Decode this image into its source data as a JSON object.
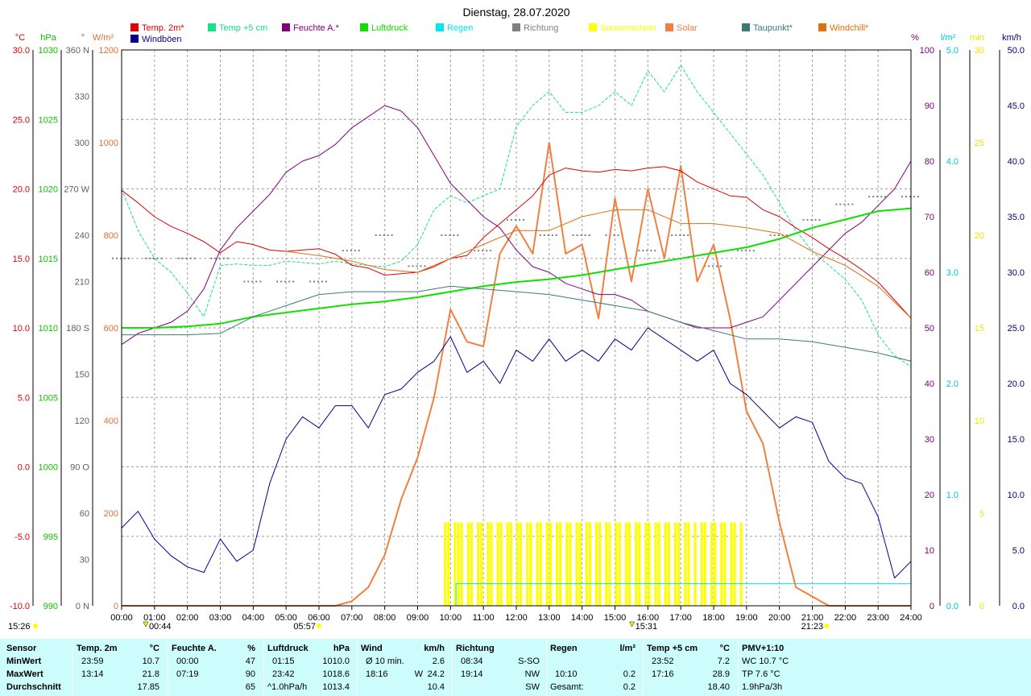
{
  "chart_data": {
    "type": "line",
    "title": "Dienstag, 28.07.2020",
    "legend": [
      {
        "name": "Temp. 2m*",
        "color": "#e00000"
      },
      {
        "name": "Windböen",
        "color": "#000090"
      },
      {
        "name": "Temp +5 cm",
        "color": "#19e08a"
      },
      {
        "name": "Feuchte A.*",
        "color": "#800080"
      },
      {
        "name": "Luftdruck",
        "color": "#10e000"
      },
      {
        "name": "Regen",
        "color": "#00e8f0"
      },
      {
        "name": "Richtung",
        "color": "#808080"
      },
      {
        "name": "Sonnenschein",
        "color": "#ffff00"
      },
      {
        "name": "Solar",
        "color": "#f08040"
      },
      {
        "name": "Taupunkt*",
        "color": "#3b7a7a"
      },
      {
        "name": "Windchill*",
        "color": "#e07010"
      }
    ],
    "x_labels": [
      "00:00",
      "01:00",
      "02:00",
      "03:00",
      "04:00",
      "05:00",
      "06:00",
      "07:00",
      "08:00",
      "09:00",
      "10:00",
      "11:00",
      "12:00",
      "13:00",
      "14:00",
      "15:00",
      "16:00",
      "17:00",
      "18:00",
      "19:00",
      "20:00",
      "21:00",
      "22:00",
      "23:00",
      "24:00"
    ],
    "left_axes": [
      {
        "unit": "°C",
        "color": "#e00000",
        "ylim": [
          -10,
          30
        ],
        "ticks": [
          "30.0",
          "25.0",
          "20.0",
          "15.0",
          "10.0",
          "5.0",
          "0.0",
          "-5.0",
          "-10.0"
        ]
      },
      {
        "unit": "hPa",
        "color": "#10c000",
        "ylim": [
          990,
          1030
        ],
        "ticks": [
          "1030",
          "1025",
          "1020",
          "1015",
          "1010",
          "1005",
          "1000",
          "995",
          "990"
        ]
      },
      {
        "unit": "°",
        "color": "#606060",
        "ylim": [
          0,
          360
        ],
        "ticks": [
          "360 N",
          "330",
          "300",
          "270 W",
          "240",
          "210",
          "180 S",
          "150",
          "120",
          "90 O",
          "60",
          "30",
          "0 N"
        ]
      },
      {
        "unit": "W/m²",
        "color": "#e07030",
        "ylim": [
          0,
          1200
        ],
        "ticks": [
          "1200",
          "1000",
          "800",
          "600",
          "400",
          "200",
          "0"
        ]
      }
    ],
    "right_axes": [
      {
        "unit": "%",
        "color": "#800080",
        "ylim": [
          0,
          100
        ],
        "ticks": [
          "100",
          "90",
          "80",
          "70",
          "60",
          "50",
          "40",
          "30",
          "20",
          "10",
          "0"
        ]
      },
      {
        "unit": "l/m²",
        "color": "#00c8d8",
        "ylim": [
          0,
          5
        ],
        "ticks": [
          "5.0",
          "4.0",
          "3.0",
          "2.0",
          "1.0",
          "0.0"
        ]
      },
      {
        "unit": "min",
        "color": "#e8e800",
        "ylim": [
          0,
          30
        ],
        "ticks": [
          "30",
          "25",
          "20",
          "15",
          "10",
          "5",
          "0"
        ]
      },
      {
        "unit": "km/h",
        "color": "#000080",
        "ylim": [
          0,
          50
        ],
        "ticks": [
          "50.0",
          "45.0",
          "40.0",
          "35.0",
          "30.0",
          "25.0",
          "20.0",
          "15.0",
          "10.0",
          "5.0",
          "0.0"
        ]
      }
    ],
    "series": [
      {
        "name": "Temp. 2m*",
        "x": [
          0,
          0.5,
          1,
          1.5,
          2,
          2.5,
          3,
          3.5,
          4,
          4.5,
          5,
          5.5,
          6,
          6.5,
          7,
          7.5,
          8,
          8.5,
          9,
          9.5,
          10,
          10.5,
          11,
          11.5,
          12,
          12.5,
          13,
          13.5,
          14,
          14.5,
          15,
          15.5,
          16,
          16.5,
          17,
          17.5,
          18,
          18.5,
          19,
          19.5,
          20,
          20.5,
          21,
          21.5,
          22,
          22.5,
          23,
          23.5,
          24
        ],
        "values": [
          19.9,
          19.0,
          18.0,
          17.3,
          16.8,
          16.2,
          15.4,
          16.2,
          16.0,
          15.6,
          15.5,
          15.6,
          15.7,
          15.3,
          14.5,
          14.3,
          13.8,
          13.9,
          14.0,
          14.4,
          15.0,
          15.2,
          16.5,
          17.5,
          18.5,
          19.5,
          21.0,
          21.5,
          21.3,
          21.2,
          21.4,
          21.3,
          21.5,
          21.6,
          21.3,
          20.5,
          20.0,
          19.5,
          19.4,
          18.5,
          18.0,
          17.2,
          16.5,
          15.7,
          15.0,
          14.2,
          13.3,
          12.0,
          10.7
        ]
      },
      {
        "name": "Temp +5 cm",
        "x": [
          0,
          0.5,
          1,
          1.5,
          2,
          2.5,
          3,
          3.5,
          4,
          4.5,
          5,
          5.5,
          6,
          6.5,
          7,
          7.5,
          8,
          8.5,
          9,
          9.5,
          10,
          10.5,
          11,
          11.5,
          12,
          12.5,
          13,
          13.5,
          14,
          14.5,
          15,
          15.5,
          16,
          16.5,
          17,
          17.5,
          18,
          18.5,
          19,
          19.5,
          20,
          20.5,
          21,
          21.5,
          22,
          22.5,
          23,
          23.5,
          24
        ],
        "values": [
          20.0,
          17.0,
          15.0,
          14.0,
          12.5,
          10.8,
          14.5,
          14.6,
          14.5,
          14.5,
          14.8,
          14.7,
          14.6,
          14.8,
          14.6,
          14.5,
          14.4,
          14.8,
          16.0,
          18.5,
          19.5,
          19.0,
          19.5,
          20.0,
          24.5,
          26.0,
          27.0,
          25.5,
          25.5,
          26.0,
          27.0,
          26.0,
          28.5,
          27.0,
          28.9,
          27.0,
          25.5,
          24.0,
          22.5,
          21.0,
          19.0,
          17.0,
          15.5,
          14.5,
          13.5,
          12.0,
          9.5,
          8.0,
          7.2
        ]
      },
      {
        "name": "Feuchte A.*",
        "x": [
          0,
          0.5,
          1,
          1.5,
          2,
          2.5,
          3,
          3.5,
          4,
          4.5,
          5,
          5.5,
          6,
          6.5,
          7,
          7.5,
          8,
          8.5,
          9,
          9.5,
          10,
          10.5,
          11,
          11.5,
          12,
          12.5,
          13,
          13.5,
          14,
          14.5,
          15,
          15.5,
          16,
          16.5,
          17,
          17.5,
          18,
          18.5,
          19,
          19.5,
          20,
          20.5,
          21,
          21.5,
          22,
          22.5,
          23,
          23.5,
          24
        ],
        "values": [
          47,
          49,
          50,
          51,
          53,
          57,
          64,
          68,
          71,
          74,
          78,
          80,
          81,
          83,
          86,
          88,
          90,
          89,
          86,
          81,
          76,
          73,
          70,
          68,
          64,
          61,
          60,
          58,
          57,
          56,
          56,
          55,
          53,
          52,
          51,
          50,
          50,
          50,
          51,
          52,
          55,
          58,
          61,
          64,
          67,
          69,
          72,
          75,
          80
        ]
      },
      {
        "name": "Luftdruck",
        "x": [
          0,
          1,
          2,
          3,
          4,
          5,
          6,
          7,
          8,
          9,
          10,
          11,
          12,
          13,
          14,
          15,
          16,
          17,
          18,
          19,
          20,
          21,
          22,
          23,
          24
        ],
        "values": [
          1010.0,
          1010.0,
          1010.1,
          1010.3,
          1010.8,
          1011.1,
          1011.4,
          1011.7,
          1011.9,
          1012.2,
          1012.6,
          1013.0,
          1013.3,
          1013.5,
          1013.8,
          1014.2,
          1014.6,
          1015.0,
          1015.4,
          1015.8,
          1016.4,
          1017.2,
          1017.8,
          1018.4,
          1018.6
        ]
      },
      {
        "name": "Taupunkt*",
        "x": [
          0,
          1,
          2,
          3,
          4,
          5,
          6,
          7,
          8,
          9,
          10,
          11,
          12,
          13,
          14,
          15,
          16,
          17,
          18,
          19,
          20,
          21,
          22,
          23,
          24
        ],
        "values": [
          9.5,
          9.5,
          9.5,
          9.6,
          10.8,
          11.6,
          12.4,
          12.6,
          12.6,
          12.6,
          13.0,
          12.8,
          12.6,
          12.4,
          12.0,
          11.6,
          11.2,
          10.4,
          9.8,
          9.2,
          9.2,
          9.0,
          8.6,
          8.2,
          7.6
        ]
      },
      {
        "name": "Windchill*",
        "x": [
          5,
          6,
          7,
          8,
          9,
          10,
          11,
          12,
          13,
          14,
          15,
          16,
          17,
          18,
          19,
          20,
          21,
          22,
          23,
          24
        ],
        "values": [
          15.5,
          15.2,
          14.8,
          14.2,
          14.0,
          15.0,
          16.0,
          17.0,
          17.0,
          18.0,
          18.5,
          18.5,
          17.5,
          17.5,
          17.2,
          16.8,
          15.5,
          14.5,
          13.0,
          10.7
        ]
      },
      {
        "name": "Windböen",
        "x": [
          0,
          0.5,
          1,
          1.5,
          2,
          2.5,
          3,
          3.5,
          4,
          4.5,
          5,
          5.5,
          6,
          6.5,
          7,
          7.5,
          8,
          8.5,
          9,
          9.5,
          10,
          10.5,
          11,
          11.5,
          12,
          12.5,
          13,
          13.5,
          14,
          14.5,
          15,
          15.5,
          16,
          16.5,
          17,
          17.5,
          18,
          18.5,
          19,
          19.5,
          20,
          20.5,
          21,
          21.5,
          22,
          22.5,
          23,
          23.5,
          24
        ],
        "values": [
          7.0,
          8.5,
          6.0,
          4.5,
          3.5,
          3.0,
          6.0,
          4.0,
          5.0,
          11.0,
          15.0,
          17.0,
          16.0,
          18.0,
          18.0,
          16.0,
          19.0,
          19.5,
          21.0,
          22.0,
          24.2,
          21.0,
          22.0,
          20.0,
          23.0,
          22.0,
          24.0,
          22.0,
          23.0,
          22.0,
          24.0,
          23.0,
          25.0,
          24.0,
          23.0,
          22.0,
          23.0,
          20.0,
          19.0,
          17.5,
          16.0,
          17.0,
          16.5,
          13.0,
          11.5,
          11.0,
          8.0,
          2.5,
          4.0
        ]
      },
      {
        "name": "Solar",
        "x": [
          0,
          6.5,
          7,
          7.5,
          8,
          8.5,
          9,
          9.5,
          10,
          10.5,
          11,
          11.5,
          12,
          12.5,
          13,
          13.5,
          14,
          14.5,
          15,
          15.5,
          16,
          16.5,
          17,
          17.5,
          18,
          18.5,
          19,
          19.5,
          20,
          20.5,
          21,
          21.5,
          22,
          24
        ],
        "values": [
          0,
          0,
          10,
          40,
          110,
          230,
          320,
          450,
          640,
          570,
          560,
          760,
          820,
          760,
          1000,
          760,
          780,
          620,
          880,
          700,
          900,
          750,
          950,
          700,
          780,
          620,
          420,
          350,
          180,
          40,
          20,
          0,
          0,
          0
        ]
      },
      {
        "name": "Richtung",
        "x": [
          0,
          1,
          2,
          3,
          4,
          5,
          6,
          7,
          8,
          9,
          10,
          11,
          12,
          13,
          14,
          15,
          16,
          17,
          18,
          19,
          20,
          21,
          22,
          23,
          24
        ],
        "values": [
          225,
          225,
          225,
          225,
          210,
          210,
          210,
          230,
          240,
          220,
          240,
          230,
          250,
          240,
          240,
          240,
          230,
          240,
          220,
          230,
          240,
          250,
          260,
          265,
          265
        ]
      }
    ],
    "sunshine": {
      "name": "Sonnenschein",
      "from": 9.8,
      "to": 18.9,
      "max_minutes": 5
    },
    "rain": {
      "name": "Regen",
      "time": "10:10",
      "total": 0.2
    },
    "markers": {
      "sunrise": "05:57",
      "sunset": "21:23",
      "left_time": "15:26",
      "min_time": "00:44",
      "max_time": "15:31"
    }
  },
  "stats": {
    "row_labels": [
      "Sensor",
      "MinWert",
      "MaxWert",
      "Durchschnitt"
    ],
    "temp2m": {
      "title": "Temp. 2m",
      "unit": "°C",
      "min_time": "23:59",
      "min": "10.7",
      "max_time": "13:14",
      "max": "21.8",
      "avg": "17.85"
    },
    "humidity": {
      "title": "Feuchte A.",
      "unit": "%",
      "min_time": "00:00",
      "min": "47",
      "max_time": "07:19",
      "max": "90",
      "avg": "65"
    },
    "pressure": {
      "title": "Luftdruck",
      "unit": "hPa",
      "min_time": "01:15",
      "min": "1010.0",
      "max_time": "23:42",
      "max": "1018.6",
      "trend_label": "^1.0hPa/h",
      "avg": "1013.4"
    },
    "wind": {
      "title": "Wind",
      "unit": "km/h",
      "min_label": "Ø 10 min.",
      "min": "2.6",
      "max_time": "18:16",
      "max_dir": "W",
      "max": "24.2",
      "avg": "10.4"
    },
    "direction": {
      "title": "Richtung",
      "min_time": "08:34",
      "min": "S-SO",
      "max_time": "19:14",
      "max": "NW",
      "avg": "SW"
    },
    "rain": {
      "title": "Regen",
      "unit": "l/m²",
      "max_time": "10:10",
      "max": "0.2",
      "total_label": "Gesamt:",
      "total": "0.2"
    },
    "temp5cm": {
      "title": "Temp +5 cm",
      "unit": "°C",
      "min_time": "23:52",
      "min": "7.2",
      "max_time": "17:16",
      "max": "28.9",
      "avg": "18.40"
    },
    "pmv": {
      "title": "PMV+1:10",
      "min": "WC 10.7 °C",
      "max": "TP 7.6 °C",
      "avg": "1.9hPa/3h"
    }
  }
}
